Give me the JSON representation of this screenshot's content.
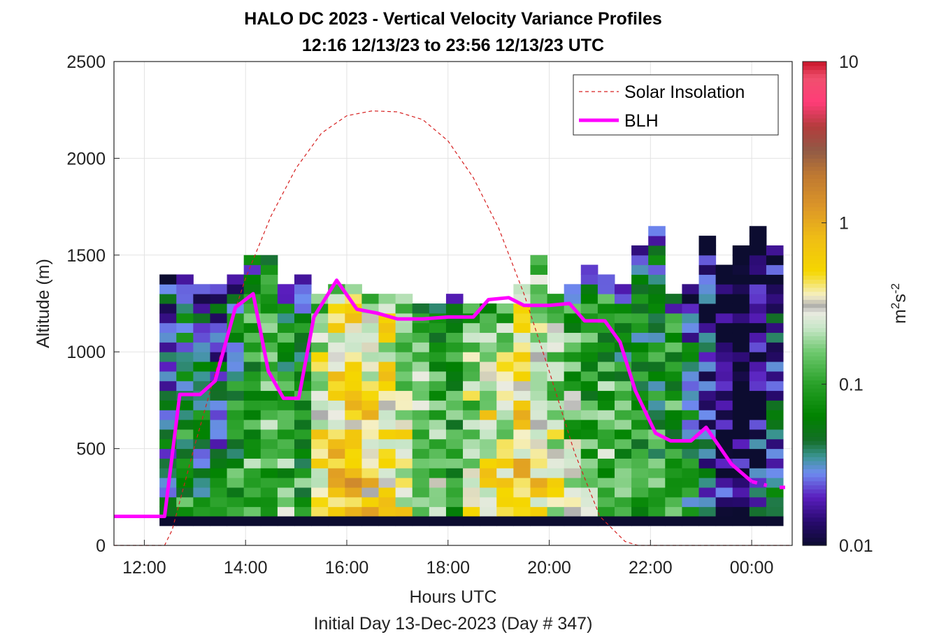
{
  "figure": {
    "title_line1": "HALO DC 2023 - Vertical Velocity Variance Profiles",
    "title_line2": "12:16 12/13/23 to 23:56 12/13/23  UTC",
    "subtitle": "Initial Day 13-Dec-2023 (Day # 347)"
  },
  "chart_data": {
    "type": "heatmap",
    "xlabel": "Hours UTC",
    "ylabel": "Altitude (m)",
    "x_range_hours": [
      11.4,
      24.8
    ],
    "ylim": [
      0,
      2500
    ],
    "x_ticks": [
      {
        "hour": 12,
        "label": "12:00"
      },
      {
        "hour": 14,
        "label": "14:00"
      },
      {
        "hour": 16,
        "label": "16:00"
      },
      {
        "hour": 18,
        "label": "18:00"
      },
      {
        "hour": 20,
        "label": "20:00"
      },
      {
        "hour": 22,
        "label": "22:00"
      },
      {
        "hour": 24,
        "label": "00:00"
      }
    ],
    "y_ticks": [
      0,
      500,
      1000,
      1500,
      2000,
      2500
    ],
    "grid": true,
    "legend_position": "top-right",
    "legend": [
      {
        "name": "Solar Insolation",
        "style": "dashed",
        "color": "#d62020"
      },
      {
        "name": "BLH",
        "style": "solid",
        "color": "#ff00ff"
      }
    ],
    "colorbar": {
      "label_base": "m",
      "label_sup1": "2",
      "label_mid": "s",
      "label_sup2": "-2",
      "scale": "log",
      "range": [
        0.01,
        10
      ],
      "tick_labels": [
        "0.01",
        "0.1",
        "1",
        "10"
      ],
      "tick_values": [
        0.01,
        0.1,
        1,
        10
      ]
    },
    "heatmap": {
      "x_start_hour": 12.3,
      "column_width_hours": 0.333,
      "altitude_start_m": 150,
      "bin_height_m": 50,
      "bottom_band": {
        "altitude_from": 100,
        "altitude_to": 150,
        "value": 0.01
      },
      "column_tops_m": [
        1380,
        1380,
        1330,
        1330,
        1380,
        1480,
        1480,
        1330,
        1380,
        1280,
        1330,
        1330,
        1280,
        1280,
        1280,
        1230,
        1230,
        1280,
        1230,
        1230,
        1230,
        1330,
        1480,
        1280,
        1330,
        1430,
        1380,
        1330,
        1530,
        1630,
        1280,
        1330,
        1580,
        1430,
        1530,
        1630,
        1530
      ],
      "column_median_log10": [
        -1.3,
        -1.1,
        -1.2,
        -1.3,
        -1.0,
        -0.8,
        -0.8,
        -0.9,
        -1.0,
        -0.3,
        -0.2,
        -0.1,
        -0.2,
        -0.2,
        -0.4,
        -0.6,
        -0.7,
        -0.9,
        -0.5,
        -0.3,
        -0.4,
        -0.2,
        -0.3,
        -0.5,
        -0.7,
        -0.8,
        -0.8,
        -0.9,
        -1.0,
        -1.0,
        -0.9,
        -1.2,
        -1.5,
        -1.8,
        -1.9,
        -1.7,
        -1.4
      ]
    },
    "blh_series": {
      "name": "BLH",
      "x_hours": [
        11.4,
        12.4,
        12.7,
        13.1,
        13.4,
        13.8,
        14.15,
        14.45,
        14.75,
        15.05,
        15.35,
        15.8,
        16.2,
        16.6,
        17.0,
        17.5,
        18.0,
        18.5,
        18.8,
        19.2,
        19.5,
        20.0,
        20.4,
        20.7,
        21.1,
        21.4,
        21.7,
        22.1,
        22.4,
        22.8,
        23.1,
        23.6,
        24.0,
        24.3
      ],
      "y_m": [
        150,
        150,
        780,
        780,
        850,
        1230,
        1300,
        900,
        760,
        760,
        1180,
        1370,
        1220,
        1200,
        1170,
        1170,
        1180,
        1180,
        1270,
        1280,
        1240,
        1240,
        1250,
        1160,
        1160,
        1050,
        800,
        580,
        540,
        540,
        610,
        420,
        330,
        310
      ]
    },
    "solar_series": {
      "name": "Solar Insolation",
      "x_hours": [
        11.4,
        12.4,
        12.55,
        13.0,
        13.5,
        14.0,
        14.5,
        15.0,
        15.5,
        16.0,
        16.5,
        17.0,
        17.5,
        18.0,
        18.5,
        19.0,
        19.5,
        20.0,
        20.5,
        21.0,
        21.5,
        21.75,
        22.0,
        24.8
      ],
      "y_m": [
        0,
        0,
        80,
        520,
        980,
        1380,
        1700,
        1950,
        2130,
        2220,
        2245,
        2240,
        2200,
        2090,
        1900,
        1640,
        1300,
        900,
        480,
        150,
        20,
        0,
        0,
        0
      ]
    }
  }
}
